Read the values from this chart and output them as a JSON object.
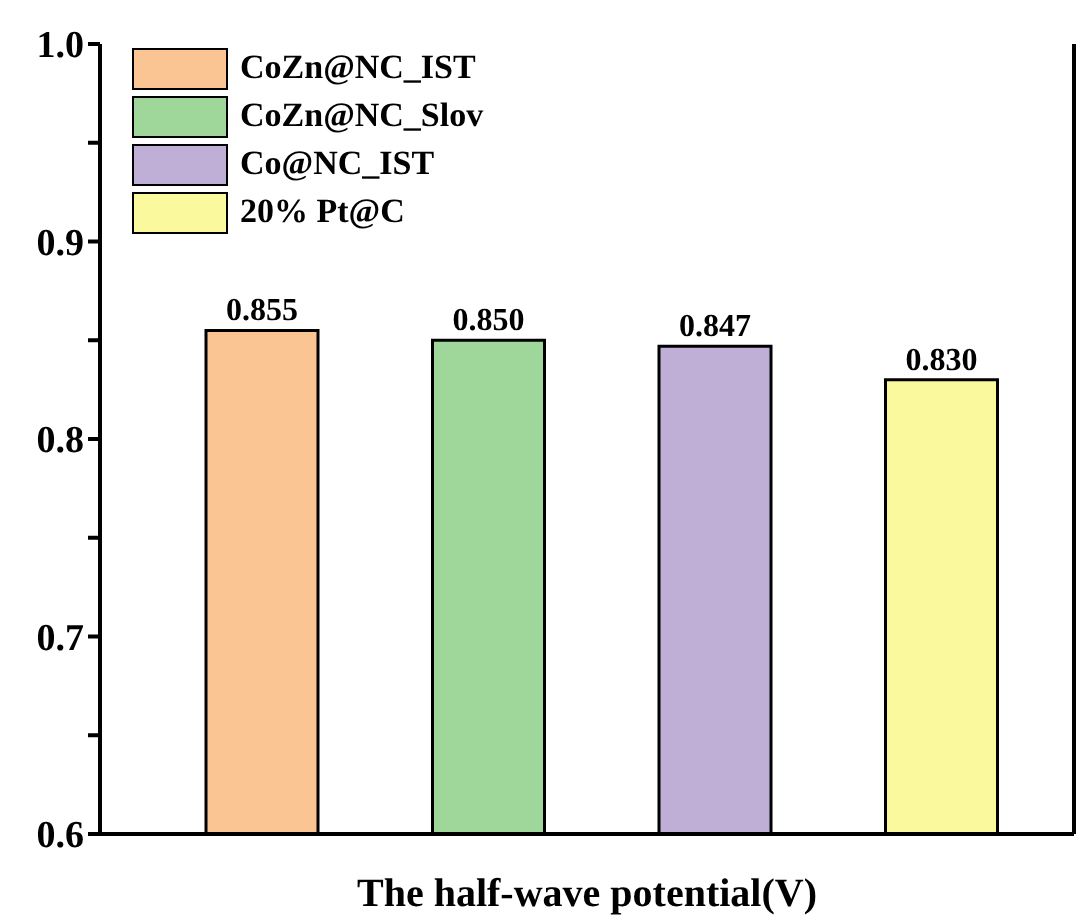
{
  "chart_data": {
    "type": "bar",
    "xlabel": "The half-wave potential(V)",
    "categories": [
      null,
      null,
      null,
      null
    ],
    "series": [
      {
        "name": "CoZn@NC_IST",
        "color": "#fbc593",
        "values": [
          0.855,
          null,
          null,
          null
        ],
        "value_labels": [
          "0.855",
          null,
          null,
          null
        ]
      },
      {
        "name": "CoZn@NC_Slov",
        "color": "#9fd69a",
        "values": [
          null,
          0.85,
          null,
          null
        ],
        "value_labels": [
          null,
          "0.850",
          null,
          null
        ]
      },
      {
        "name": "Co@NC_IST",
        "color": "#bfafd6",
        "values": [
          null,
          null,
          0.847,
          null
        ],
        "value_labels": [
          null,
          null,
          "0.847",
          null
        ]
      },
      {
        "name": "20% Pt@C",
        "color": "#fbf99d",
        "values": [
          null,
          null,
          null,
          0.83
        ],
        "value_labels": [
          null,
          null,
          null,
          "0.830"
        ]
      }
    ],
    "ylim": [
      0.6,
      1.0
    ],
    "yticks": [
      {
        "value": 0.6,
        "label": "0.6"
      },
      {
        "value": 0.65,
        "label": null
      },
      {
        "value": 0.7,
        "label": "0.7"
      },
      {
        "value": 0.75,
        "label": null
      },
      {
        "value": 0.8,
        "label": "0.8"
      },
      {
        "value": 0.85,
        "label": null
      },
      {
        "value": 0.9,
        "label": "0.9"
      },
      {
        "value": 0.95,
        "label": null
      },
      {
        "value": 1.0,
        "label": "1.0"
      }
    ],
    "legend": "top left",
    "grid": false
  }
}
